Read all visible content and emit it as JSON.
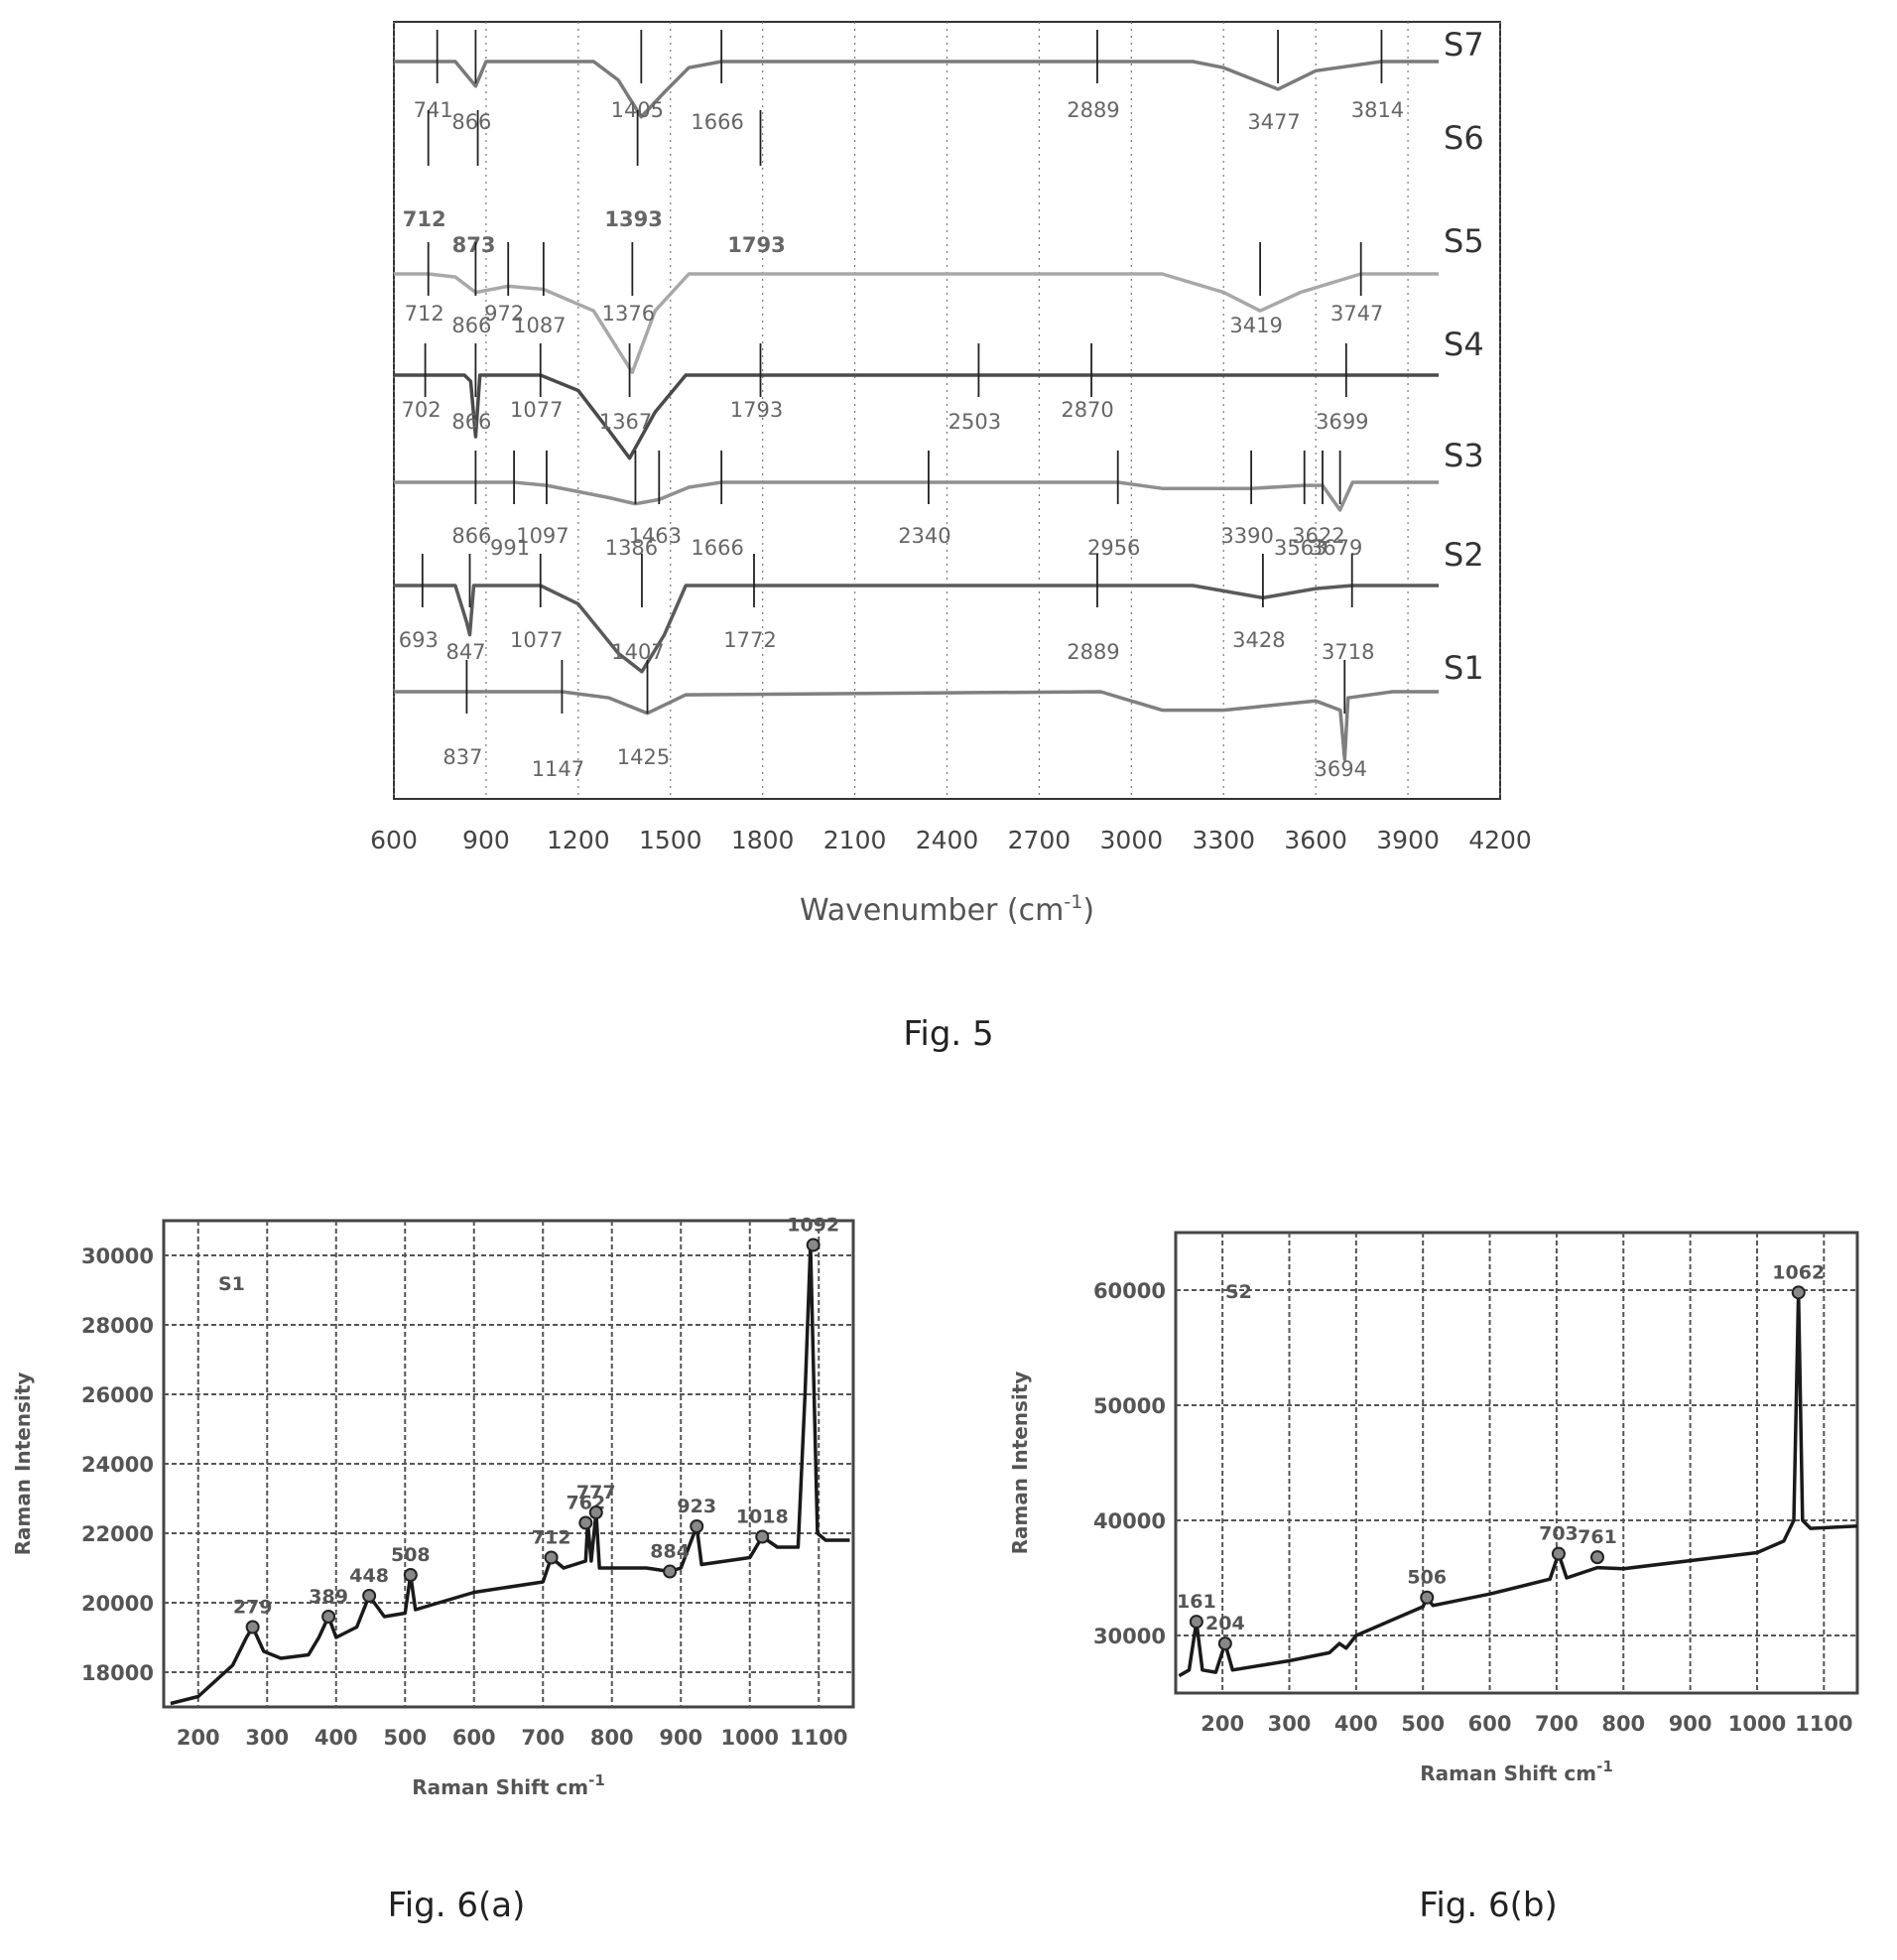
{
  "chart_data": [
    {
      "type": "line",
      "figure": "ftir",
      "xlabel": "Wavenumber (cm",
      "xlabel_sup": "-1",
      "xlabel_close": ")",
      "xlim": [
        600,
        4200
      ],
      "ticks": [
        600,
        900,
        1200,
        1500,
        1800,
        2100,
        2400,
        2700,
        3000,
        3300,
        3600,
        3900,
        4200
      ],
      "grid": "vertical-dotted",
      "series": [
        {
          "name": "S7",
          "color": "#7a7a7a",
          "points": [
            [
              600,
              0
            ],
            [
              741,
              0
            ],
            [
              800,
              0
            ],
            [
              866,
              -0.4
            ],
            [
              900,
              0
            ],
            [
              1250,
              0
            ],
            [
              1330,
              -0.3
            ],
            [
              1405,
              -0.9
            ],
            [
              1480,
              -0.5
            ],
            [
              1560,
              -0.1
            ],
            [
              1666,
              0
            ],
            [
              2889,
              0
            ],
            [
              3200,
              0
            ],
            [
              3300,
              -0.1
            ],
            [
              3477,
              -0.45
            ],
            [
              3600,
              -0.15
            ],
            [
              3814,
              0
            ],
            [
              4000,
              0
            ]
          ],
          "peaks": [
            741,
            866,
            1405,
            1666,
            2889,
            3477,
            3814
          ]
        },
        {
          "name": "S6",
          "color": "#111111",
          "points": [],
          "peaks": [
            712,
            873,
            1393,
            1793
          ]
        },
        {
          "name": "S5",
          "color": "#a8a8a8",
          "points": [
            [
              600,
              0
            ],
            [
              712,
              0
            ],
            [
              800,
              -0.05
            ],
            [
              866,
              -0.3
            ],
            [
              972,
              -0.2
            ],
            [
              1087,
              -0.25
            ],
            [
              1250,
              -0.6
            ],
            [
              1376,
              -1.6
            ],
            [
              1450,
              -0.6
            ],
            [
              1560,
              0
            ],
            [
              3100,
              0
            ],
            [
              3300,
              -0.3
            ],
            [
              3419,
              -0.6
            ],
            [
              3550,
              -0.3
            ],
            [
              3747,
              0
            ],
            [
              4000,
              0
            ]
          ],
          "peaks": [
            712,
            866,
            972,
            1087,
            1376,
            3419,
            3747
          ]
        },
        {
          "name": "S4",
          "color": "#4a4a4a",
          "points": [
            [
              600,
              0
            ],
            [
              702,
              0
            ],
            [
              830,
              0
            ],
            [
              850,
              -0.1
            ],
            [
              866,
              -1.0
            ],
            [
              880,
              0
            ],
            [
              1077,
              0
            ],
            [
              1200,
              -0.25
            ],
            [
              1300,
              -0.9
            ],
            [
              1367,
              -1.35
            ],
            [
              1450,
              -0.6
            ],
            [
              1550,
              0
            ],
            [
              1793,
              0
            ],
            [
              2503,
              0
            ],
            [
              2870,
              0
            ],
            [
              3699,
              0
            ],
            [
              4000,
              0
            ]
          ],
          "peaks": [
            702,
            866,
            1077,
            1367,
            1793,
            2503,
            2870,
            3699
          ]
        },
        {
          "name": "S3",
          "color": "#8f8f8f",
          "points": [
            [
              600,
              0
            ],
            [
              866,
              0
            ],
            [
              991,
              0
            ],
            [
              1097,
              -0.05
            ],
            [
              1300,
              -0.25
            ],
            [
              1386,
              -0.35
            ],
            [
              1463,
              -0.28
            ],
            [
              1560,
              -0.08
            ],
            [
              1666,
              0
            ],
            [
              2340,
              0
            ],
            [
              2956,
              0
            ],
            [
              3100,
              -0.1
            ],
            [
              3390,
              -0.1
            ],
            [
              3563,
              -0.05
            ],
            [
              3622,
              -0.05
            ],
            [
              3679,
              -0.45
            ],
            [
              3720,
              0
            ],
            [
              4000,
              0
            ]
          ],
          "peaks": [
            866,
            991,
            1097,
            1386,
            1463,
            1666,
            2340,
            2956,
            3390,
            3563,
            3622,
            3679
          ]
        },
        {
          "name": "S2",
          "color": "#5a5a5a",
          "points": [
            [
              600,
              0
            ],
            [
              693,
              0
            ],
            [
              800,
              0
            ],
            [
              837,
              -0.6
            ],
            [
              847,
              -0.8
            ],
            [
              860,
              0
            ],
            [
              1077,
              0
            ],
            [
              1200,
              -0.3
            ],
            [
              1330,
              -1.1
            ],
            [
              1407,
              -1.4
            ],
            [
              1480,
              -0.8
            ],
            [
              1550,
              0
            ],
            [
              1772,
              0
            ],
            [
              2889,
              0
            ],
            [
              3200,
              0
            ],
            [
              3428,
              -0.2
            ],
            [
              3600,
              -0.05
            ],
            [
              3718,
              0
            ],
            [
              4000,
              0
            ]
          ],
          "peaks": [
            693,
            847,
            1077,
            1407,
            1772,
            2889,
            3428,
            3718
          ]
        },
        {
          "name": "S1",
          "color": "#7f7f7f",
          "points": [
            [
              600,
              0
            ],
            [
              837,
              0
            ],
            [
              1147,
              0
            ],
            [
              1300,
              -0.1
            ],
            [
              1425,
              -0.35
            ],
            [
              1550,
              -0.05
            ],
            [
              2900,
              0
            ],
            [
              3100,
              -0.3
            ],
            [
              3300,
              -0.3
            ],
            [
              3600,
              -0.15
            ],
            [
              3680,
              -0.3
            ],
            [
              3694,
              -1.1
            ],
            [
              3705,
              -0.1
            ],
            [
              3850,
              0
            ],
            [
              4000,
              0
            ]
          ],
          "peaks": [
            837,
            1147,
            1425,
            3694
          ]
        }
      ],
      "peak_labels": {
        "S7": [
          "741",
          "866",
          "1405",
          "1666",
          "2889",
          "3477",
          "3814"
        ],
        "S6": [
          "712",
          "873",
          "1393",
          "1793"
        ],
        "S5": [
          "712",
          "866",
          "972",
          "1087",
          "1376",
          "3419",
          "3747"
        ],
        "S4": [
          "702",
          "866",
          "1077",
          "1367",
          "1793",
          "2503",
          "2870",
          "3699"
        ],
        "S3": [
          "866",
          "991",
          "1097",
          "1386",
          "1463",
          "1666",
          "2340",
          "2956",
          "3390",
          "3563",
          "3622",
          "3679"
        ],
        "S2": [
          "693",
          "847",
          "1077",
          "1407",
          "1772",
          "2889",
          "3428",
          "3718"
        ],
        "S1": [
          "837",
          "1147",
          "1425",
          "3694"
        ]
      }
    },
    {
      "type": "line",
      "figure": "raman-s1",
      "label": "S1",
      "xlabel": "Raman Shift cm",
      "xlabel_sup": "-1",
      "ylabel": "Raman Intensity",
      "xlim": [
        150,
        1150
      ],
      "ylim": [
        17000,
        31000
      ],
      "xticks": [
        200,
        300,
        400,
        500,
        600,
        700,
        800,
        900,
        1000,
        1100
      ],
      "yticks": [
        18000,
        20000,
        22000,
        24000,
        26000,
        28000,
        30000
      ],
      "grid": true,
      "points": [
        [
          160,
          17100
        ],
        [
          200,
          17300
        ],
        [
          250,
          18200
        ],
        [
          270,
          19000
        ],
        [
          279,
          19300
        ],
        [
          295,
          18600
        ],
        [
          320,
          18400
        ],
        [
          360,
          18500
        ],
        [
          375,
          19000
        ],
        [
          389,
          19600
        ],
        [
          400,
          19000
        ],
        [
          430,
          19300
        ],
        [
          448,
          20200
        ],
        [
          470,
          19600
        ],
        [
          500,
          19700
        ],
        [
          508,
          20800
        ],
        [
          515,
          19800
        ],
        [
          600,
          20300
        ],
        [
          700,
          20600
        ],
        [
          712,
          21300
        ],
        [
          730,
          21000
        ],
        [
          762,
          21200
        ],
        [
          765,
          22300
        ],
        [
          770,
          21200
        ],
        [
          777,
          22600
        ],
        [
          782,
          21000
        ],
        [
          850,
          21000
        ],
        [
          884,
          20900
        ],
        [
          900,
          21000
        ],
        [
          923,
          22200
        ],
        [
          930,
          21100
        ],
        [
          1000,
          21300
        ],
        [
          1018,
          21900
        ],
        [
          1040,
          21600
        ],
        [
          1070,
          21600
        ],
        [
          1080,
          26000
        ],
        [
          1088,
          30300
        ],
        [
          1098,
          22000
        ],
        [
          1110,
          21800
        ],
        [
          1145,
          21800
        ]
      ],
      "peaks": [
        [
          279,
          19300,
          "279"
        ],
        [
          389,
          19600,
          "389"
        ],
        [
          448,
          20200,
          "448"
        ],
        [
          508,
          20800,
          "508"
        ],
        [
          712,
          21300,
          "712"
        ],
        [
          762,
          22300,
          "762"
        ],
        [
          777,
          22600,
          "777"
        ],
        [
          884,
          20900,
          "884"
        ],
        [
          923,
          22200,
          "923"
        ],
        [
          1018,
          21900,
          "1018"
        ],
        [
          1092,
          30300,
          "1092"
        ]
      ]
    },
    {
      "type": "line",
      "figure": "raman-s2",
      "label": "S2",
      "xlabel": "Raman Shift cm",
      "xlabel_sup": "-1",
      "ylabel": "Raman Intensity",
      "xlim": [
        130,
        1150
      ],
      "ylim": [
        25000,
        65000
      ],
      "xticks": [
        200,
        300,
        400,
        500,
        600,
        700,
        800,
        900,
        1000,
        1100
      ],
      "yticks": [
        30000,
        40000,
        50000,
        60000
      ],
      "grid": true,
      "points": [
        [
          135,
          26500
        ],
        [
          150,
          27000
        ],
        [
          161,
          31200
        ],
        [
          170,
          27000
        ],
        [
          190,
          26800
        ],
        [
          204,
          29300
        ],
        [
          215,
          27000
        ],
        [
          300,
          27800
        ],
        [
          360,
          28500
        ],
        [
          375,
          29300
        ],
        [
          385,
          28900
        ],
        [
          400,
          30000
        ],
        [
          500,
          32500
        ],
        [
          506,
          33300
        ],
        [
          515,
          32600
        ],
        [
          600,
          33600
        ],
        [
          690,
          34900
        ],
        [
          703,
          37100
        ],
        [
          715,
          35000
        ],
        [
          761,
          35900
        ],
        [
          800,
          35800
        ],
        [
          1000,
          37200
        ],
        [
          1040,
          38200
        ],
        [
          1055,
          40000
        ],
        [
          1062,
          59800
        ],
        [
          1068,
          40000
        ],
        [
          1080,
          39300
        ],
        [
          1150,
          39500
        ]
      ],
      "peaks": [
        [
          161,
          31200,
          "161"
        ],
        [
          204,
          29300,
          "204"
        ],
        [
          506,
          33300,
          "506"
        ],
        [
          703,
          37100,
          "703"
        ],
        [
          761,
          36800,
          "761"
        ],
        [
          1062,
          59800,
          "1062"
        ]
      ]
    }
  ],
  "captions": {
    "fig5": "Fig. 5",
    "fig6a": "Fig. 6(a)",
    "fig6b": "Fig. 6(b)"
  }
}
